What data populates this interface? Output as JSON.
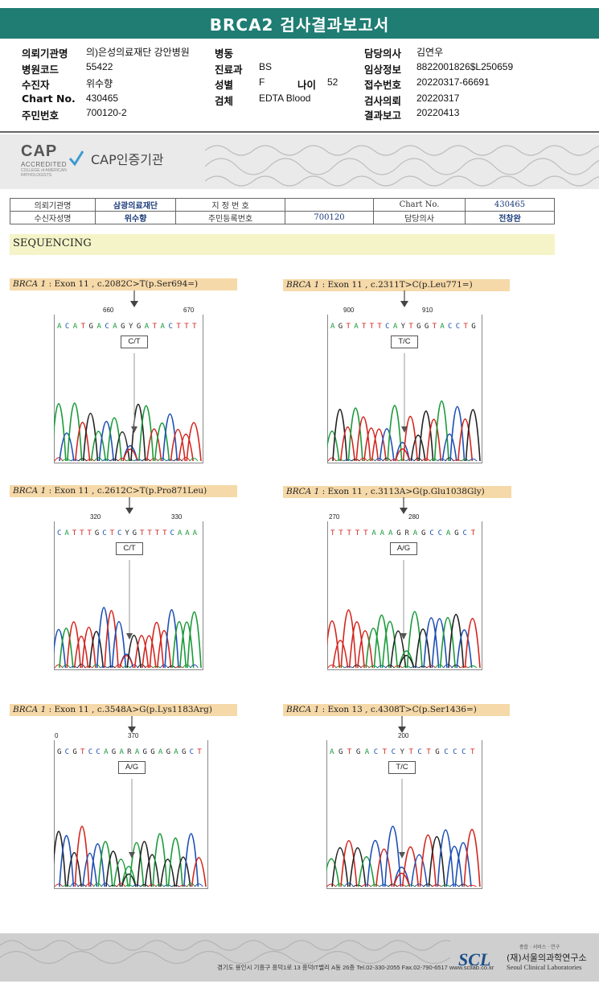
{
  "header": {
    "title": "BRCA2 검사결과보고서"
  },
  "info": {
    "rows": [
      {
        "c1l": "의뢰기관명",
        "c1v": "의)은성의료재단 강안병원",
        "c2l": "병동",
        "c2v": "",
        "c3l": "담당의사",
        "c3v": "김연우"
      },
      {
        "c1l": "병원코드",
        "c1v": "55422",
        "c2l": "진료과",
        "c2v": "BS",
        "c3l": "임상정보",
        "c3v": "8822001826$L250659"
      },
      {
        "c1l": "수진자",
        "c1v": "위수향",
        "c2l": "성별",
        "c2v": "F",
        "c2l2": "나이",
        "c2v2": "52",
        "c3l": "접수번호",
        "c3v": "20220317-66691"
      },
      {
        "c1l": "Chart No.",
        "c1v": "430465",
        "c2l": "검체",
        "c2v": "EDTA Blood",
        "c3l": "검사의뢰",
        "c3v": "20220317"
      },
      {
        "c1l": "주민번호",
        "c1v": "700120-2",
        "c2l": "",
        "c2v": "",
        "c3l": "결과보고",
        "c3v": "20220413"
      }
    ]
  },
  "cap": {
    "logo_text": "CAP",
    "accredited": "ACCREDITED",
    "college": "COLLEGE of AMERICAN PATHOLOGISTS",
    "title": "CAP인증기관"
  },
  "patient_table": {
    "r1": [
      "의뢰기관명",
      "삼광의료재단",
      "지 정 번 호",
      "",
      "Chart No.",
      "430465"
    ],
    "r2": [
      "수신자성명",
      "위수향",
      "주민등록번호",
      "700120",
      "담당의사",
      "전창완"
    ]
  },
  "section": {
    "sequencing": "SEQUENCING"
  },
  "variants": [
    {
      "gene": "BRCA 1",
      "desc": ": Exon 11 , c.2082C>T(p.Ser694=)",
      "n1": "660",
      "n2": "670",
      "seq": "ACATGACAGYGATACTTT",
      "call": "C/T"
    },
    {
      "gene": "BRCA 1",
      "desc": ": Exon 11 , c.2311T>C(p.Leu771=)",
      "n1": "900",
      "n2": "910",
      "seq": "AGTATTTCAYTGGTACCTG",
      "call": "T/C"
    },
    {
      "gene": "BRCA 1",
      "desc": ": Exon 11 , c.2612C>T(p.Pro871Leu)",
      "n1": "320",
      "n2": "330",
      "seq": "CATTTGCTCYGTTTTCAAA",
      "call": "C/T"
    },
    {
      "gene": "BRCA 1",
      "desc": ": Exon 11 , c.3113A>G(p.Glu1038Gly)",
      "n1": "270",
      "n2": "280",
      "seq": "TTTTTAAAGRAGCCAGCT",
      "call": "A/G"
    },
    {
      "gene": "BRCA 1",
      "desc": ": Exon 11 , c.3548A>G(p.Lys1183Arg)",
      "n1": "0",
      "n2": "370",
      "seq": "GCGTCCAGARAGGAGAGCT",
      "call": "A/G"
    },
    {
      "gene": "BRCA 1",
      "desc": ": Exon 13 , c.4308T>C(p.Ser1436=)",
      "n1": "",
      "n2": "200",
      "seq": "AGTGACTCYTCTGCCCT",
      "call": "T/C"
    }
  ],
  "footer": {
    "address": "경기도 용인시 기흥구 흥덕1로 13 흥덕IT밸리 A동 26층  Tel.02-330-2055  Fax.02-790-6517  www.scllab.co.kr",
    "logo": "SCL",
    "tagline": "종합 · 서비스 · 연구",
    "name_kr": "(재)서울의과학연구소",
    "name_en": "Seoul Clinical Laboratories"
  },
  "colors": {
    "header_bg": "#1f7d73",
    "A": "#1a9a3a",
    "C": "#1d4fb5",
    "G": "#222222",
    "T": "#d3261f"
  }
}
